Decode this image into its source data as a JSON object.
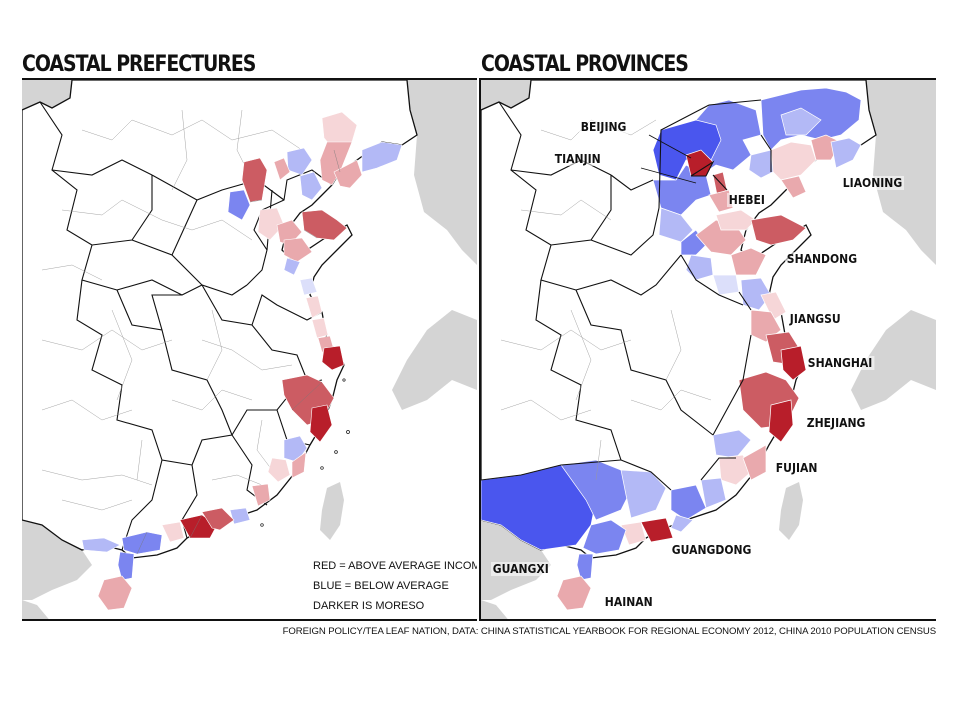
{
  "titles": {
    "left": "COASTAL PREFECTURES",
    "right": "COASTAL PROVINCES"
  },
  "legend": {
    "red": "RED = ABOVE AVERAGE INCOME",
    "blue": "BLUE = BELOW AVERAGE",
    "dark": "DARKER IS MORESO"
  },
  "colors": {
    "land": "#ffffff",
    "sea": "#ffffff",
    "foreign": "#d4d4d4",
    "dark_red": "#b81e2a",
    "red": "#cc5c63",
    "light_red": "#e9a9ad",
    "pale_red": "#f6d6d8",
    "dark_blue": "#4a56ee",
    "blue": "#7b85f0",
    "light_blue": "#b3b9f6",
    "pale_blue": "#dcdffa"
  },
  "provinces": {
    "beijing": "BEIJING",
    "tianjin": "TIANJIN",
    "hebei": "HEBEI",
    "liaoning": "LIAONING",
    "shandong": "SHANDONG",
    "jiangsu": "JIANGSU",
    "shanghai": "SHANGHAI",
    "zhejiang": "ZHEJIANG",
    "fujian": "FUJIAN",
    "guangdong": "GUANGDONG",
    "guangxi": "GUANGXI",
    "hainan": "HAINAN"
  },
  "footer": "FOREIGN POLICY/TEA LEAF NATION, DATA: CHINA STATISTICAL YEARBOOK FOR REGIONAL ECONOMY 2012, CHINA 2010 POPULATION CENSUS"
}
